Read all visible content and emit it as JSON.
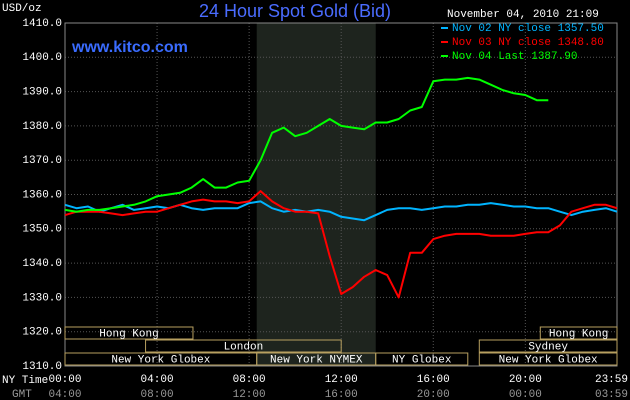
{
  "chart_data": {
    "type": "line",
    "title": "24 Hour Spot Gold (Bid)",
    "source": "www.kitco.com",
    "timestamp": "November 04, 2010 21:09",
    "y_label": "USD/oz",
    "x_label": "NY Time",
    "x2_label": "GMT",
    "x": [
      0,
      0.5,
      1,
      1.5,
      2,
      2.5,
      3,
      3.5,
      4,
      4.5,
      5,
      5.5,
      6,
      6.5,
      7,
      7.5,
      8,
      8.5,
      9,
      9.5,
      10,
      10.5,
      11,
      11.5,
      12,
      12.5,
      13,
      13.5,
      14,
      14.5,
      15,
      15.5,
      16,
      16.5,
      17,
      17.5,
      18,
      18.5,
      19,
      19.5,
      20,
      20.5,
      21,
      21.5,
      22,
      22.5,
      23,
      23.5,
      23.983
    ],
    "series": [
      {
        "name": "Nov 02 NY close 1357.50",
        "color": "#00b4ff",
        "values": [
          1357,
          1356,
          1356.5,
          1355,
          1356,
          1357,
          1355.5,
          1356,
          1356.5,
          1356,
          1357,
          1356,
          1355.5,
          1356,
          1356,
          1356,
          1357.5,
          1358,
          1356,
          1355,
          1355.5,
          1355,
          1355.5,
          1355,
          1353.5,
          1353,
          1352.5,
          1354,
          1355.5,
          1356,
          1356,
          1355.5,
          1356,
          1356.5,
          1356.5,
          1357,
          1357,
          1357.5,
          1357,
          1356.5,
          1356.5,
          1356,
          1356,
          1355,
          1354,
          1355,
          1355.5,
          1356,
          1355
        ]
      },
      {
        "name": "Nov 03 NY close 1348.80",
        "color": "#ff0000",
        "values": [
          1354,
          1355,
          1355,
          1355,
          1354.5,
          1354,
          1354.5,
          1355,
          1355,
          1356,
          1357,
          1358,
          1358.5,
          1358,
          1358,
          1357.5,
          1358,
          1361,
          1358,
          1356,
          1355,
          1355,
          1354.5,
          1342,
          1331,
          1333,
          1336,
          1338,
          1336.5,
          1330,
          1343,
          1343,
          1347,
          1348,
          1348.5,
          1348.5,
          1348.5,
          1348,
          1348,
          1348,
          1348.5,
          1349,
          1349,
          1351,
          1355,
          1356,
          1357,
          1357,
          1356
        ]
      },
      {
        "name": "Nov 04 Last 1387.90",
        "color": "#00ff00",
        "values": [
          1355.5,
          1355,
          1355.5,
          1355.5,
          1356,
          1356.5,
          1357,
          1358,
          1359.5,
          1360,
          1360.5,
          1362,
          1364.5,
          1362,
          1362,
          1363.5,
          1364,
          1370,
          1378,
          1379.5,
          1377,
          1378,
          1380,
          1382,
          1380,
          1379.5,
          1379,
          1381,
          1381,
          1382,
          1384.5,
          1385.5,
          1393,
          1393.5,
          1393.5,
          1394,
          1393.5,
          1392,
          1390.5,
          1389.5,
          1389,
          1387.5,
          1387.5,
          null,
          null,
          null,
          null,
          null,
          null
        ]
      }
    ],
    "xlim": [
      0,
      23.983
    ],
    "xticks": [
      {
        "value": 0,
        "label": "00:00"
      },
      {
        "value": 4,
        "label": "04:00"
      },
      {
        "value": 8,
        "label": "08:00"
      },
      {
        "value": 12,
        "label": "12:00"
      },
      {
        "value": 16,
        "label": "16:00"
      },
      {
        "value": 20,
        "label": "20:00"
      },
      {
        "value": 23.983,
        "label": "23:59"
      }
    ],
    "x2ticks": [
      {
        "value": 0,
        "label": "04:00"
      },
      {
        "value": 4,
        "label": "08:00"
      },
      {
        "value": 8,
        "label": "12:00"
      },
      {
        "value": 12,
        "label": "16:00"
      },
      {
        "value": 16,
        "label": "20:00"
      },
      {
        "value": 20,
        "label": "00:00"
      },
      {
        "value": 23.983,
        "label": "03:59"
      }
    ],
    "ylim": [
      1310,
      1410
    ],
    "yticks": [
      {
        "value": 1310,
        "label": "1310.0"
      },
      {
        "value": 1320,
        "label": "1320.0"
      },
      {
        "value": 1330,
        "label": "1330.0"
      },
      {
        "value": 1340,
        "label": "1340.0"
      },
      {
        "value": 1350,
        "label": "1350.0"
      },
      {
        "value": 1360,
        "label": "1360.0"
      },
      {
        "value": 1370,
        "label": "1370.0"
      },
      {
        "value": 1380,
        "label": "1380.0"
      },
      {
        "value": 1390,
        "label": "1390.0"
      },
      {
        "value": 1400,
        "label": "1400.0"
      },
      {
        "value": 1410,
        "label": "1410.0"
      }
    ],
    "grid": true,
    "session_rows": [
      [
        {
          "label": "Hong Kong",
          "start": 0,
          "end": 5.56
        },
        {
          "label": "Hong Kong",
          "start": 20.65,
          "end": 23.983
        }
      ],
      [
        {
          "label": "London",
          "start": 3.5,
          "end": 12
        },
        {
          "label": "Sydney",
          "start": 18,
          "end": 23.983
        }
      ],
      [
        {
          "label": "New York Globex",
          "start": 0,
          "end": 8.33
        },
        {
          "label": "New York NYMEX",
          "start": 8.33,
          "end": 13.5
        },
        {
          "label": "NY Globex",
          "start": 13.5,
          "end": 17.5
        },
        {
          "label": "New York Globex",
          "start": 18,
          "end": 23.983
        }
      ]
    ]
  }
}
